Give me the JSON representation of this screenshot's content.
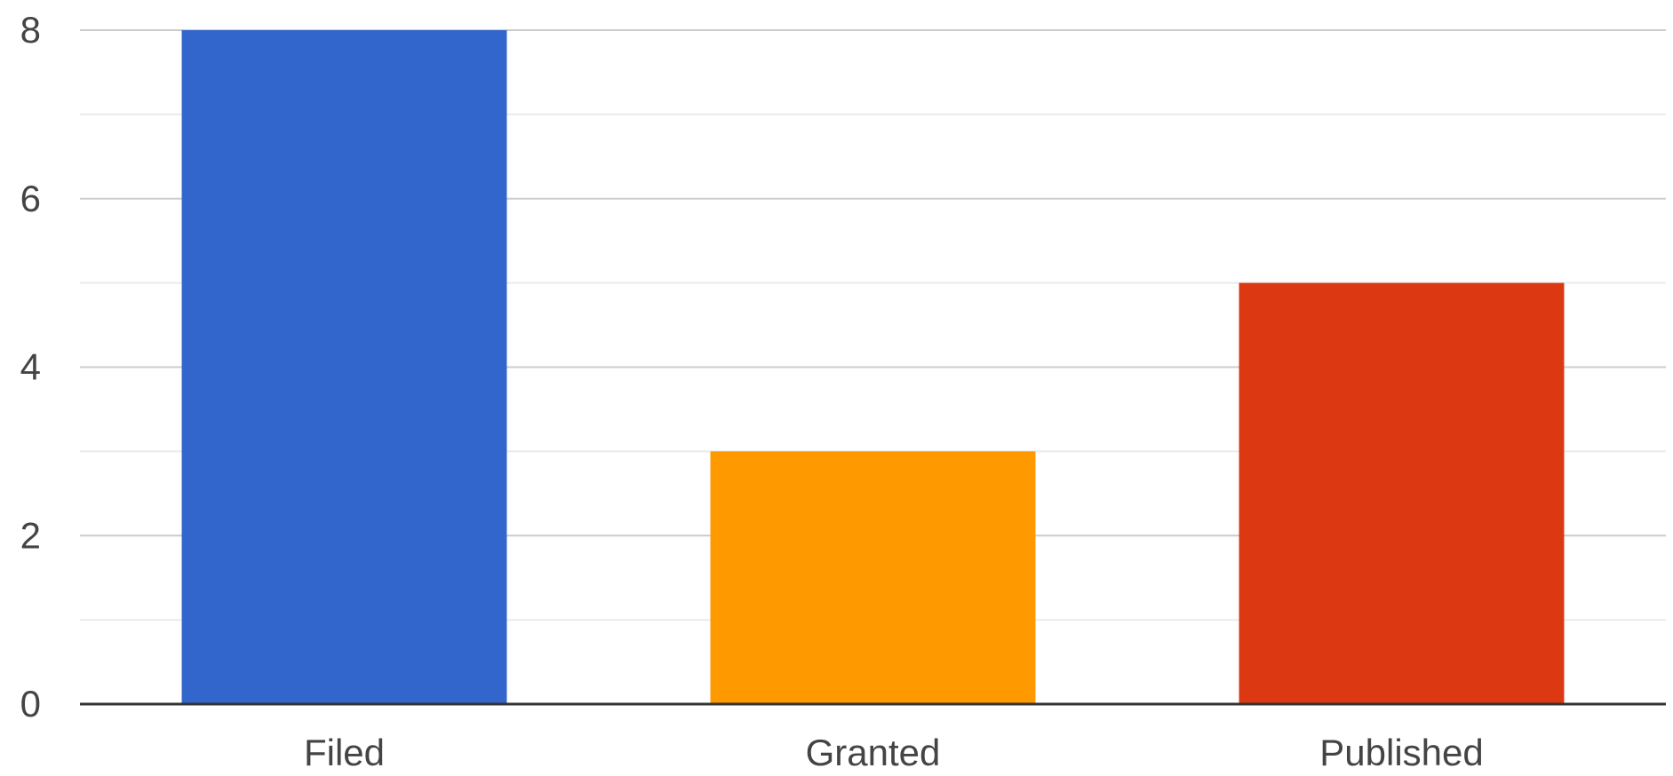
{
  "chart_data": {
    "type": "bar",
    "title": "",
    "xlabel": "",
    "ylabel": "",
    "categories": [
      "Filed",
      "Granted",
      "Published"
    ],
    "values": [
      8,
      3,
      5
    ],
    "bar_colors": [
      "#3366cc",
      "#ff9900",
      "#dc3912"
    ],
    "ylim": [
      0,
      8
    ],
    "yticks": [
      0,
      2,
      4,
      6,
      8
    ],
    "ytick_labels": [
      "0",
      "2",
      "4",
      "6",
      "8"
    ],
    "minor_gridlines": true,
    "grid": true,
    "legend": "none"
  }
}
